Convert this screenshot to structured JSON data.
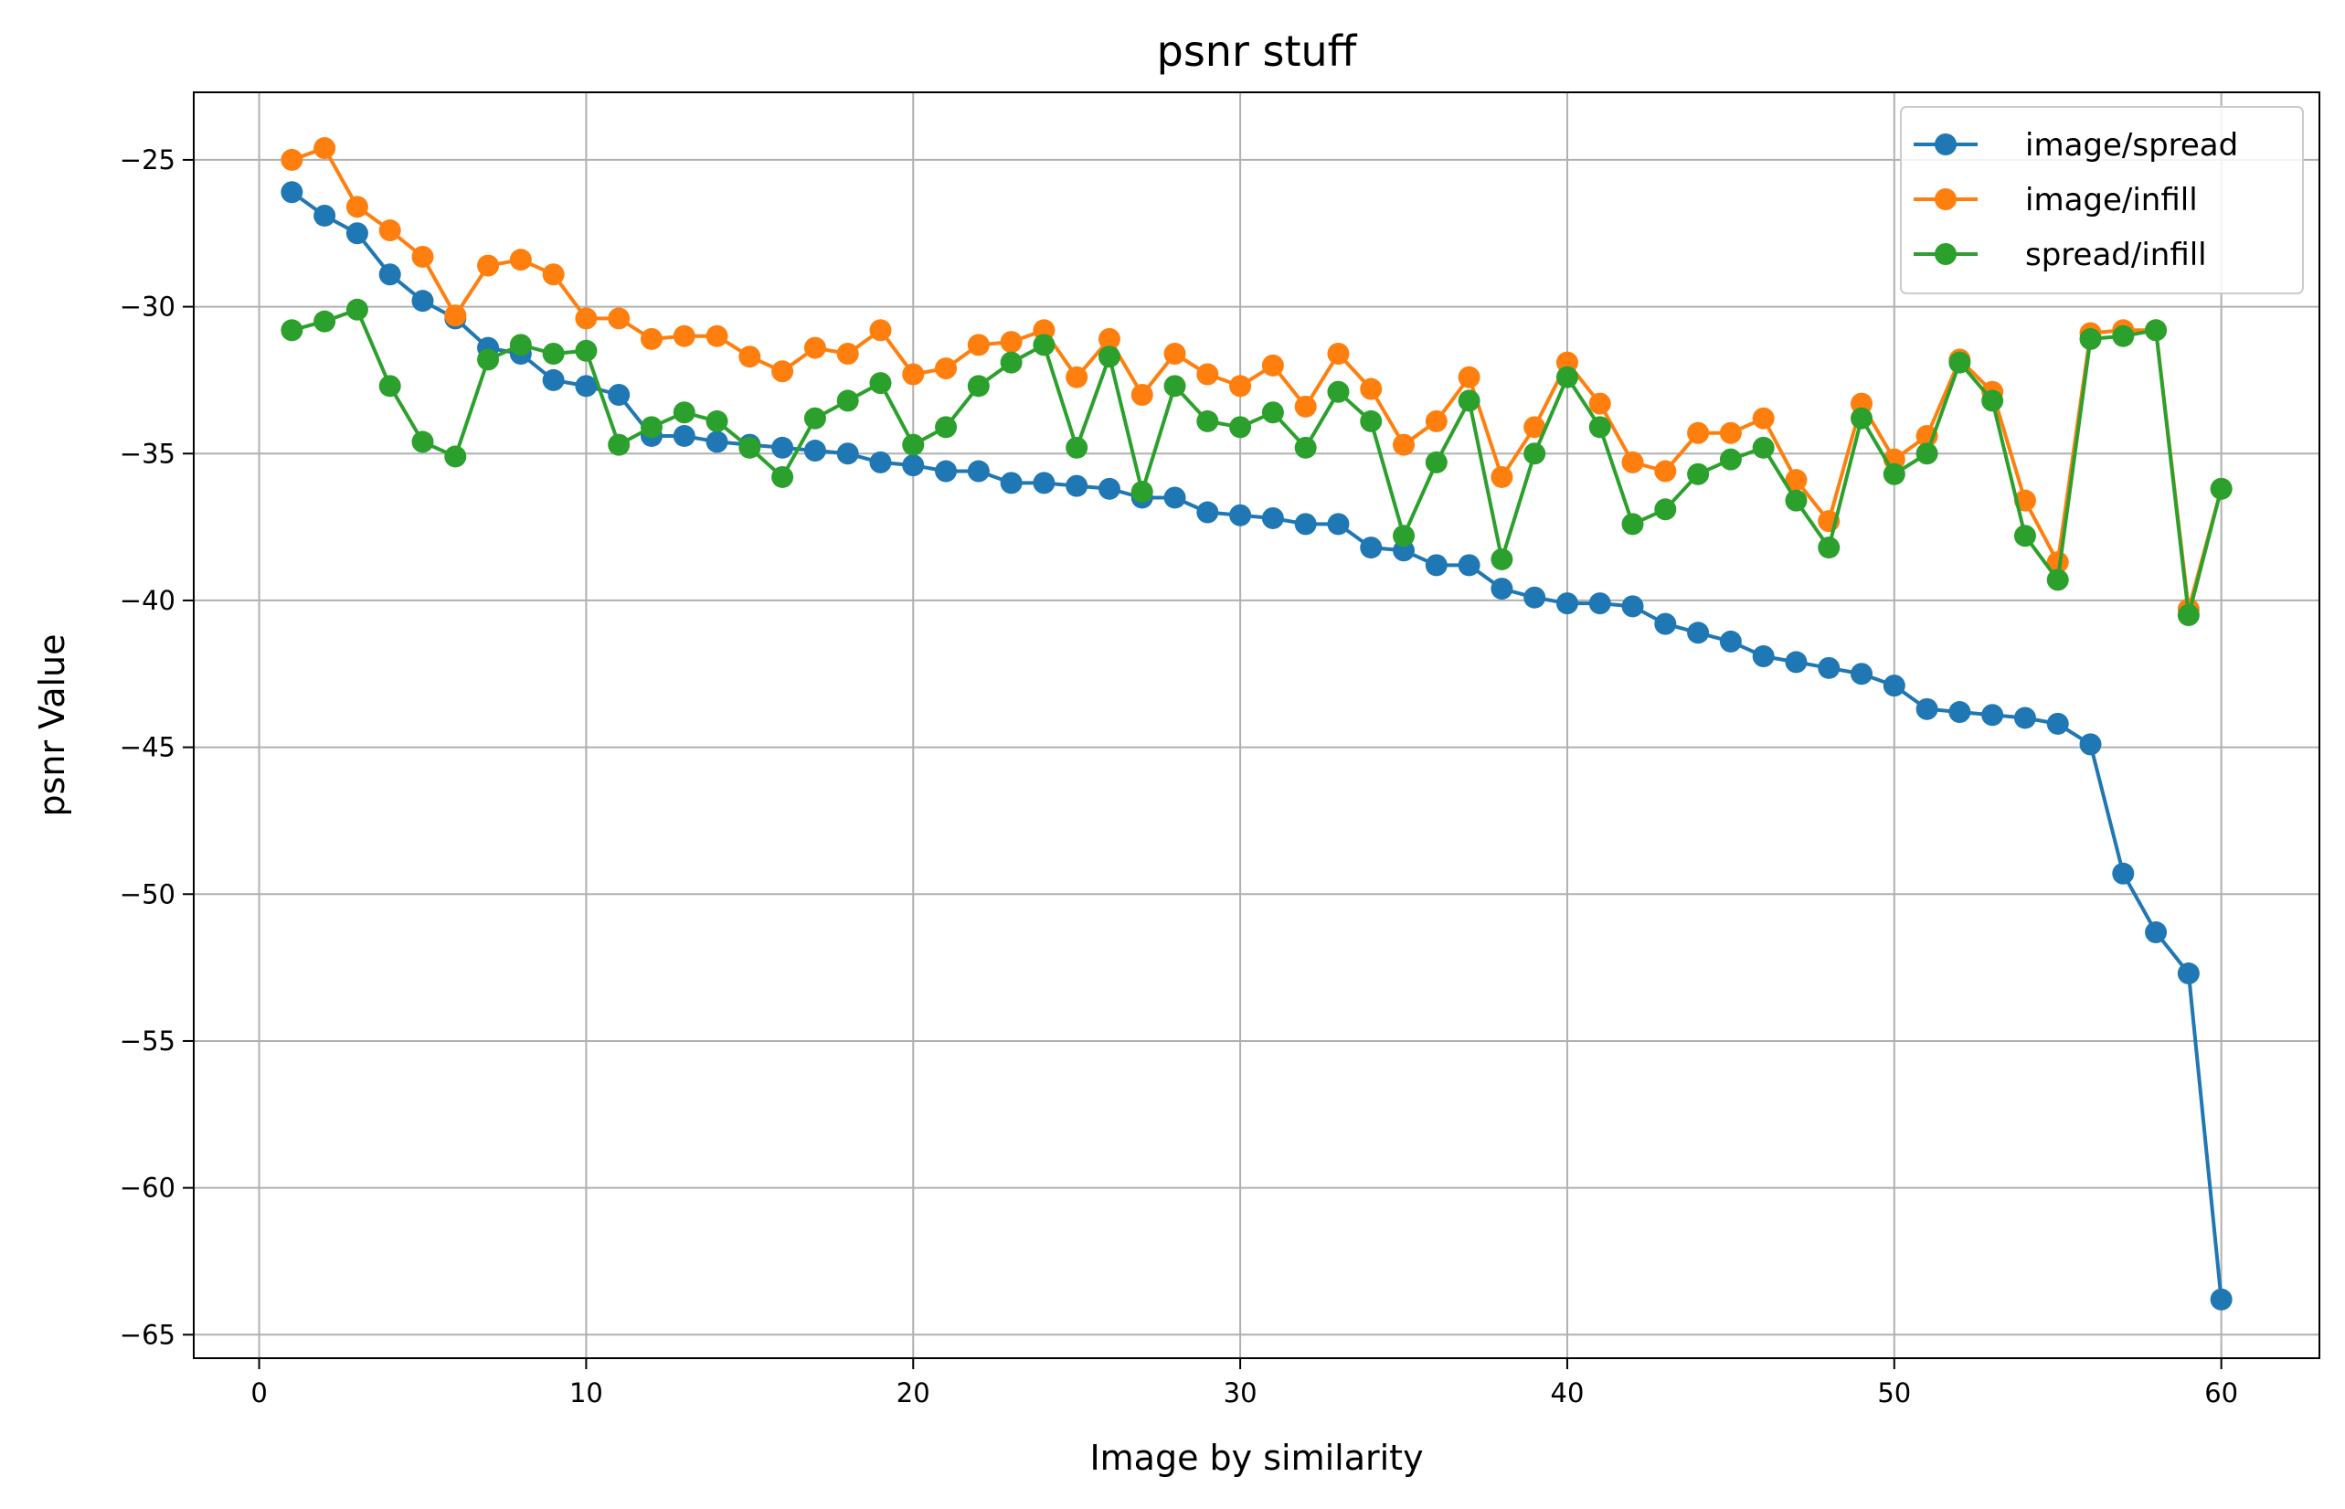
{
  "chart_data": {
    "type": "line",
    "title": "psnr stuff",
    "xlabel": "Image by similarity",
    "ylabel": "psnr Value",
    "xlim": [
      -2,
      63
    ],
    "ylim": [
      -65.8,
      -22.7
    ],
    "xticks": [
      0,
      10,
      20,
      30,
      40,
      50,
      60
    ],
    "yticks": [
      -25,
      -30,
      -35,
      -40,
      -45,
      -50,
      -55,
      -60,
      -65
    ],
    "xtick_labels": [
      "0",
      "10",
      "20",
      "30",
      "40",
      "50",
      "60"
    ],
    "ytick_labels": [
      "−25",
      "−30",
      "−35",
      "−40",
      "−45",
      "−50",
      "−55",
      "−60",
      "−65"
    ],
    "grid": true,
    "legend_position": "top-right",
    "markers": "circle",
    "x": [
      1,
      2,
      3,
      4,
      5,
      6,
      7,
      8,
      9,
      10,
      11,
      12,
      13,
      14,
      15,
      16,
      17,
      18,
      19,
      20,
      21,
      22,
      23,
      24,
      25,
      26,
      27,
      28,
      29,
      30,
      31,
      32,
      33,
      34,
      35,
      36,
      37,
      38,
      39,
      40,
      41,
      42,
      43,
      44,
      45,
      46,
      47,
      48,
      49,
      50,
      51,
      52,
      53,
      54,
      55,
      56,
      57,
      58,
      59,
      60
    ],
    "series": [
      {
        "name": "image/spread",
        "color": "#1f77b4",
        "values": [
          -26.1,
          -26.9,
          -27.5,
          -28.9,
          -29.8,
          -30.4,
          -31.4,
          -31.6,
          -32.5,
          -32.7,
          -33.0,
          -34.4,
          -34.4,
          -34.6,
          -34.7,
          -34.8,
          -34.9,
          -35.0,
          -35.3,
          -35.4,
          -35.6,
          -35.6,
          -36.0,
          -36.0,
          -36.1,
          -36.2,
          -36.5,
          -36.5,
          -37.0,
          -37.1,
          -37.2,
          -37.4,
          -37.4,
          -38.2,
          -38.3,
          -38.8,
          -38.8,
          -39.6,
          -39.9,
          -40.1,
          -40.1,
          -40.2,
          -40.8,
          -41.1,
          -41.4,
          -41.9,
          -42.1,
          -42.3,
          -42.5,
          -42.9,
          -43.7,
          -43.8,
          -43.9,
          -44.0,
          -44.2,
          -44.9,
          -49.3,
          -51.3,
          -52.7,
          -63.8
        ]
      },
      {
        "name": "image/infill",
        "color": "#ff7f0e",
        "values": [
          -25.0,
          -24.6,
          -26.6,
          -27.4,
          -28.3,
          -30.3,
          -28.6,
          -28.4,
          -28.9,
          -30.4,
          -30.4,
          -31.1,
          -31.0,
          -31.0,
          -31.7,
          -32.2,
          -31.4,
          -31.6,
          -30.8,
          -32.3,
          -32.1,
          -31.3,
          -31.2,
          -30.8,
          -32.4,
          -31.1,
          -33.0,
          -31.6,
          -32.3,
          -32.7,
          -32.0,
          -33.4,
          -31.6,
          -32.8,
          -34.7,
          -33.9,
          -32.4,
          -35.8,
          -34.1,
          -31.9,
          -33.3,
          -35.3,
          -35.6,
          -34.3,
          -34.3,
          -33.8,
          -35.9,
          -37.3,
          -33.3,
          -35.2,
          -34.4,
          -31.8,
          -32.9,
          -36.6,
          -38.7,
          -30.9,
          -30.8,
          -30.8,
          -40.3,
          -36.2
        ]
      },
      {
        "name": "spread/infill",
        "color": "#2ca02c",
        "values": [
          -30.8,
          -30.5,
          -30.1,
          -32.7,
          -34.6,
          -35.1,
          -31.8,
          -31.3,
          -31.6,
          -31.5,
          -34.7,
          -34.1,
          -33.6,
          -33.9,
          -34.8,
          -35.8,
          -33.8,
          -33.2,
          -32.6,
          -34.7,
          -34.1,
          -32.7,
          -31.9,
          -31.3,
          -34.8,
          -31.7,
          -36.3,
          -32.7,
          -33.9,
          -34.1,
          -33.6,
          -34.8,
          -32.9,
          -33.9,
          -37.8,
          -35.3,
          -33.2,
          -38.6,
          -35.0,
          -32.4,
          -34.1,
          -37.4,
          -36.9,
          -35.7,
          -35.2,
          -34.8,
          -36.6,
          -38.2,
          -33.8,
          -35.7,
          -35.0,
          -31.9,
          -33.2,
          -37.8,
          -39.3,
          -31.1,
          -31.0,
          -30.8,
          -40.5,
          -36.2
        ]
      }
    ]
  }
}
